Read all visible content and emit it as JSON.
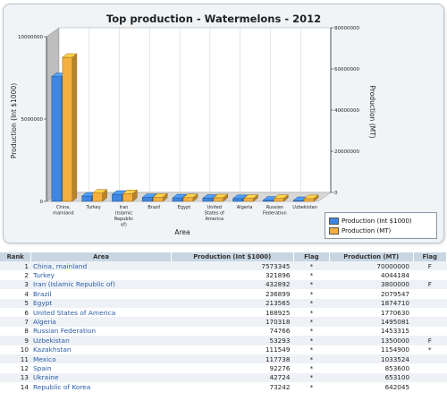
{
  "chart_data": {
    "type": "bar",
    "title": "Top production - Watermelons - 2012",
    "xlabel": "Area",
    "ylabel_left": "Production (Int $1000)",
    "ylabel_right": "Production (MT)",
    "categories": [
      "China, mainland",
      "Turkey",
      "Iran (Islamic Republic of)",
      "Brazil",
      "Egypt",
      "United States of America",
      "Algeria",
      "Russian Federation",
      "Uzbekistan"
    ],
    "category_labels": [
      [
        "China,",
        "mainland"
      ],
      [
        "Turkey"
      ],
      [
        "Iran",
        "(Islamic",
        "Republic",
        "of)"
      ],
      [
        "Brazil"
      ],
      [
        "Egypt"
      ],
      [
        "United",
        "States of",
        "America"
      ],
      [
        "Algeria"
      ],
      [
        "Russian",
        "Federation"
      ],
      [
        "Uzbekistan"
      ]
    ],
    "series": [
      {
        "name": "Production (Int $1000)",
        "axis": "left",
        "color": "#3f86e0",
        "values": [
          7573345,
          321896,
          432892,
          236899,
          213565,
          188925,
          170318,
          74766,
          53293
        ]
      },
      {
        "name": "Production (MT)",
        "axis": "right",
        "color": "#f5b03d",
        "values": [
          70000000,
          4044184,
          3800000,
          2079547,
          1874710,
          1770630,
          1495081,
          1453315,
          1350000
        ]
      }
    ],
    "ylim_left": [
      0,
      10000000
    ],
    "yticks_left": [
      "0",
      "5000000",
      "10000000"
    ],
    "ylim_right": [
      0,
      80000000
    ],
    "yticks_right": [
      "0",
      "20000000",
      "40000000",
      "60000000",
      "80000000"
    ],
    "legend_position": "bottom-right",
    "grid": true
  },
  "table": {
    "columns": [
      "Rank",
      "Area",
      "Production (Int $1000)",
      "Flag",
      "Production (MT)",
      "Flag"
    ],
    "rows": [
      {
        "rank": "1",
        "area": "China, mainland",
        "int": "7573345",
        "flag1": "*",
        "mt": "70000000",
        "flag2": "F"
      },
      {
        "rank": "2",
        "area": "Turkey",
        "int": "321896",
        "flag1": "*",
        "mt": "4044184",
        "flag2": ""
      },
      {
        "rank": "3",
        "area": "Iran (Islamic Republic of)",
        "int": "432892",
        "flag1": "*",
        "mt": "3800000",
        "flag2": "F"
      },
      {
        "rank": "4",
        "area": "Brazil",
        "int": "236899",
        "flag1": "*",
        "mt": "2079547",
        "flag2": ""
      },
      {
        "rank": "5",
        "area": "Egypt",
        "int": "213565",
        "flag1": "*",
        "mt": "1874710",
        "flag2": ""
      },
      {
        "rank": "6",
        "area": "United States of America",
        "int": "188925",
        "flag1": "*",
        "mt": "1770630",
        "flag2": ""
      },
      {
        "rank": "7",
        "area": "Algeria",
        "int": "170318",
        "flag1": "*",
        "mt": "1495081",
        "flag2": ""
      },
      {
        "rank": "8",
        "area": "Russian Federation",
        "int": "74766",
        "flag1": "*",
        "mt": "1453315",
        "flag2": ""
      },
      {
        "rank": "9",
        "area": "Uzbekistan",
        "int": "53293",
        "flag1": "*",
        "mt": "1350000",
        "flag2": "F"
      },
      {
        "rank": "10",
        "area": "Kazakhstan",
        "int": "111549",
        "flag1": "*",
        "mt": "1154900",
        "flag2": "*"
      },
      {
        "rank": "11",
        "area": "Mexico",
        "int": "117738",
        "flag1": "*",
        "mt": "1033524",
        "flag2": ""
      },
      {
        "rank": "12",
        "area": "Spain",
        "int": "92276",
        "flag1": "*",
        "mt": "853600",
        "flag2": ""
      },
      {
        "rank": "13",
        "area": "Ukraine",
        "int": "42724",
        "flag1": "*",
        "mt": "653100",
        "flag2": ""
      },
      {
        "rank": "14",
        "area": "Republic of Korea",
        "int": "73242",
        "flag1": "*",
        "mt": "642045",
        "flag2": ""
      }
    ]
  }
}
